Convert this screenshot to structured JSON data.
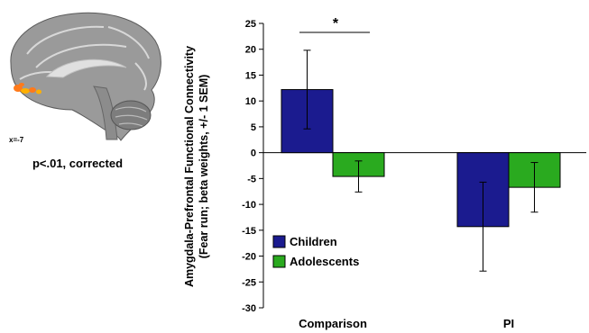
{
  "brain": {
    "slice_label": "x=-7",
    "caption": "p<.01, corrected",
    "activation_color": "#ff7a1a"
  },
  "chart_data": {
    "type": "bar",
    "ylabel_line1": "Amygdala-Prefrontal Functional Connectivity",
    "ylabel_line2": "(Fear run; beta weights, +/- 1 SEM)",
    "xlabel": "",
    "categories": [
      "Comparison",
      "PI"
    ],
    "series": [
      {
        "name": "Children",
        "color": "#1b1b8f",
        "values": [
          12.2,
          -14.3
        ],
        "errors": [
          7.6,
          8.6
        ]
      },
      {
        "name": "Adolescents",
        "color": "#2aaa1f",
        "values": [
          -4.6,
          -6.7
        ],
        "errors": [
          3.0,
          4.8
        ]
      }
    ],
    "ylim": [
      -30,
      25
    ],
    "yticks": [
      25,
      20,
      15,
      10,
      5,
      0,
      -5,
      -10,
      -15,
      -20,
      -25,
      -30
    ],
    "legend_position": "lower-left",
    "grid": false,
    "significance": {
      "label": "*",
      "category": "Comparison"
    }
  }
}
